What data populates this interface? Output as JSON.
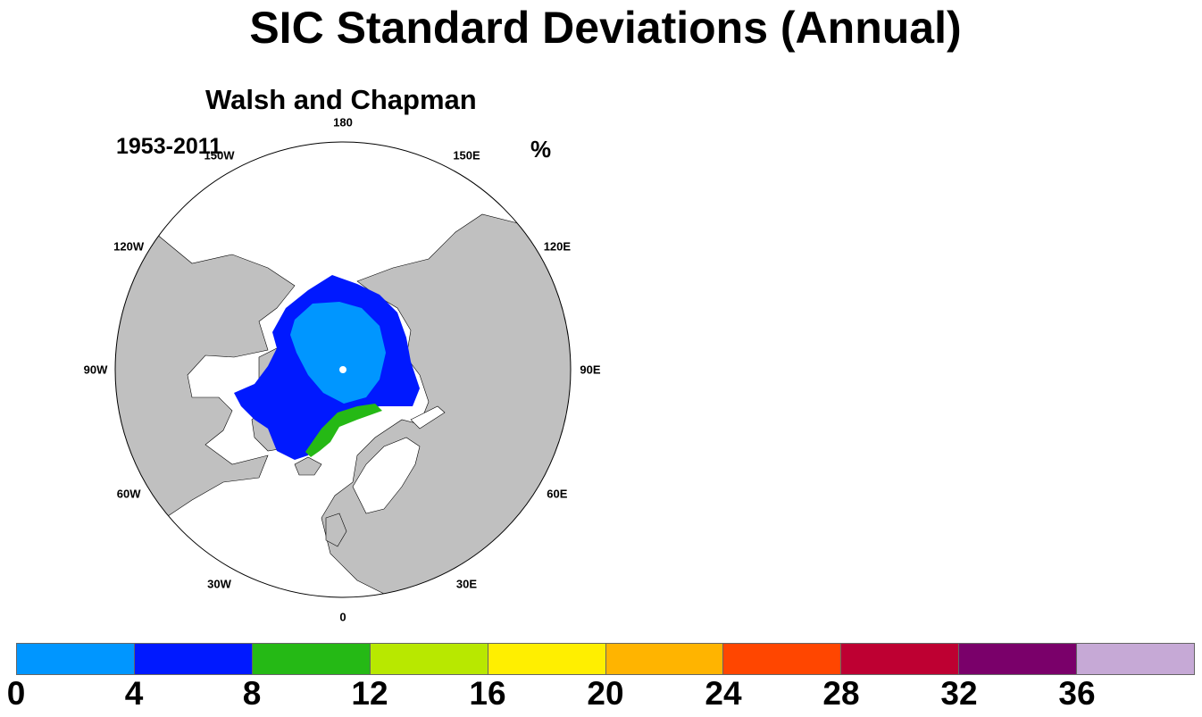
{
  "title": "SIC Standard Deviations (Annual)",
  "panel": {
    "title": "Walsh and Chapman",
    "period": "1953-2011",
    "units": "%"
  },
  "map": {
    "projection": "north-polar-stereographic",
    "land_color": "#c0c0c0",
    "ocean_color": "#ffffff",
    "longitude_labels": [
      {
        "lon": 180,
        "text": "180"
      },
      {
        "lon": 150,
        "text": "150E"
      },
      {
        "lon": 120,
        "text": "120E"
      },
      {
        "lon": 90,
        "text": "90E"
      },
      {
        "lon": 60,
        "text": "60E"
      },
      {
        "lon": 30,
        "text": "30E"
      },
      {
        "lon": 0,
        "text": "0"
      },
      {
        "lon": -30,
        "text": "30W"
      },
      {
        "lon": -60,
        "text": "60W"
      },
      {
        "lon": -90,
        "text": "90W"
      },
      {
        "lon": -120,
        "text": "120W"
      },
      {
        "lon": -150,
        "text": "150W"
      }
    ]
  },
  "colorbar": {
    "colors": [
      "#0096ff",
      "#0019ff",
      "#25b915",
      "#b8e800",
      "#ffef00",
      "#ffb400",
      "#ff4600",
      "#be0032",
      "#7a006a",
      "#c6a9d6"
    ],
    "ticks": [
      "0",
      "4",
      "8",
      "12",
      "16",
      "20",
      "24",
      "28",
      "32",
      "36"
    ]
  }
}
